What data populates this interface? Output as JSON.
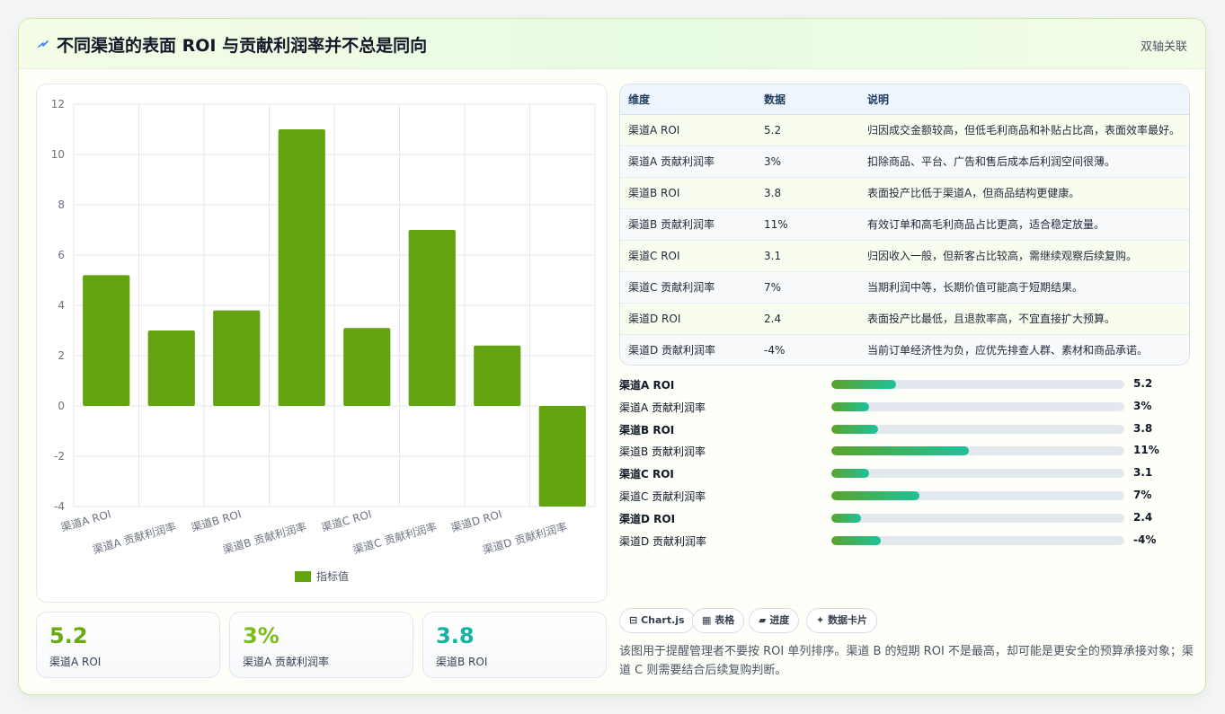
{
  "header": {
    "title": "不同渠道的表面 ROI 与贡献利润率并不总是同向",
    "tag": "双轴关联"
  },
  "colors": {
    "bar": "#62a30f",
    "accent_green": "#7cbd1a",
    "accent_teal": "#13b3a3"
  },
  "chart_data": {
    "type": "bar",
    "categories": [
      "渠道A ROI",
      "渠道A 贡献利润率",
      "渠道B ROI",
      "渠道B 贡献利润率",
      "渠道C ROI",
      "渠道C 贡献利润率",
      "渠道D ROI",
      "渠道D 贡献利润率"
    ],
    "series": [
      {
        "name": "指标值",
        "values": [
          5.2,
          3,
          3.8,
          11,
          3.1,
          7,
          2.4,
          -4
        ]
      }
    ],
    "ylim": [
      -4,
      12
    ],
    "yticks": [
      -4,
      -2,
      0,
      2,
      4,
      6,
      8,
      10,
      12
    ],
    "grid": true,
    "legend": "bottom"
  },
  "stats": [
    {
      "value": "5.2",
      "label": "渠道A ROI",
      "color": "#6aaa12"
    },
    {
      "value": "3%",
      "label": "渠道A 贡献利润率",
      "color": "#7cbd1a"
    },
    {
      "value": "3.8",
      "label": "渠道B ROI",
      "color": "#13b3a3"
    }
  ],
  "table": {
    "headers": [
      "维度",
      "数据",
      "说明"
    ],
    "rows": [
      [
        "渠道A ROI",
        "5.2",
        "归因成交金额较高，但低毛利商品和补贴占比高，表面效率最好。"
      ],
      [
        "渠道A 贡献利润率",
        "3%",
        "扣除商品、平台、广告和售后成本后利润空间很薄。"
      ],
      [
        "渠道B ROI",
        "3.8",
        "表面投产比低于渠道A，但商品结构更健康。"
      ],
      [
        "渠道B 贡献利润率",
        "11%",
        "有效订单和高毛利商品占比更高，适合稳定放量。"
      ],
      [
        "渠道C ROI",
        "3.1",
        "归因收入一般，但新客占比较高，需继续观察后续复购。"
      ],
      [
        "渠道C 贡献利润率",
        "7%",
        "当期利润中等，长期价值可能高于短期结果。"
      ],
      [
        "渠道D ROI",
        "2.4",
        "表面投产比最低，且退款率高，不宜直接扩大预算。"
      ],
      [
        "渠道D 贡献利润率",
        "-4%",
        "当前订单经济性为负，应优先排查人群、素材和商品承诺。"
      ]
    ]
  },
  "progress": [
    {
      "label": "渠道A ROI",
      "value": "5.2",
      "fraction": 0.22
    },
    {
      "label": "渠道A 贡献利润率",
      "value": "3%",
      "fraction": 0.13
    },
    {
      "label": "渠道B ROI",
      "value": "3.8",
      "fraction": 0.16
    },
    {
      "label": "渠道B 贡献利润率",
      "value": "11%",
      "fraction": 0.47
    },
    {
      "label": "渠道C ROI",
      "value": "3.1",
      "fraction": 0.13
    },
    {
      "label": "渠道C 贡献利润率",
      "value": "7%",
      "fraction": 0.3
    },
    {
      "label": "渠道D ROI",
      "value": "2.4",
      "fraction": 0.1
    },
    {
      "label": "渠道D 贡献利润率",
      "value": "-4%",
      "fraction": 0.17
    }
  ],
  "chips": [
    {
      "icon": "⊟",
      "label": "Chart.js"
    },
    {
      "icon": "▦",
      "label": "表格"
    },
    {
      "icon": "▰",
      "label": "进度"
    },
    {
      "icon": "✦",
      "label": "数据卡片"
    }
  ],
  "note": "该图用于提醒管理者不要按 ROI 单列排序。渠道 B 的短期 ROI 不是最高，却可能是更安全的预算承接对象；渠道 C 则需要结合后续复购判断。"
}
